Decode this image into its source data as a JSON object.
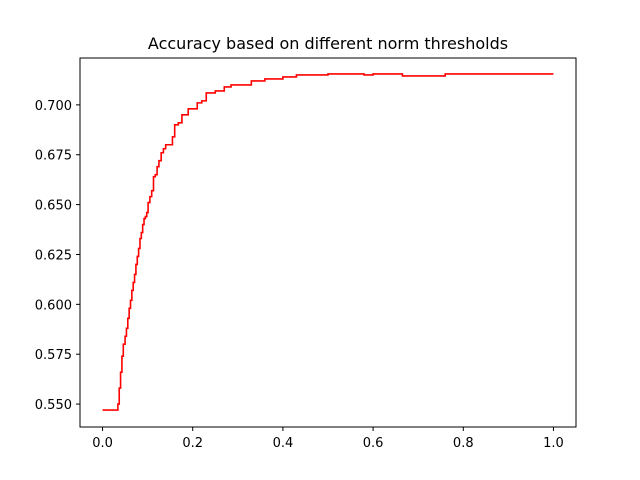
{
  "chart_data": {
    "type": "line",
    "title": "Accuracy based on different norm thresholds",
    "xlabel": "",
    "ylabel": "",
    "xlim": [
      -0.05,
      1.05
    ],
    "ylim": [
      0.5385,
      0.7235
    ],
    "xticks": [
      0.0,
      0.2,
      0.4,
      0.6,
      0.8,
      1.0
    ],
    "xtick_labels": [
      "0.0",
      "0.2",
      "0.4",
      "0.6",
      "0.8",
      "1.0"
    ],
    "yticks": [
      0.55,
      0.575,
      0.6,
      0.625,
      0.65,
      0.675,
      0.7
    ],
    "ytick_labels": [
      "0.550",
      "0.575",
      "0.600",
      "0.625",
      "0.650",
      "0.675",
      "0.700"
    ],
    "grid": false,
    "legend": "none",
    "series": [
      {
        "color": "#ff0000",
        "step": "post",
        "x": [
          0.0,
          0.03,
          0.034,
          0.037,
          0.04,
          0.043,
          0.046,
          0.05,
          0.053,
          0.056,
          0.059,
          0.062,
          0.065,
          0.068,
          0.071,
          0.074,
          0.077,
          0.08,
          0.083,
          0.086,
          0.089,
          0.092,
          0.095,
          0.098,
          0.101,
          0.105,
          0.109,
          0.113,
          0.117,
          0.121,
          0.125,
          0.13,
          0.135,
          0.14,
          0.145,
          0.15,
          0.155,
          0.16,
          0.168,
          0.176,
          0.184,
          0.19,
          0.2,
          0.21,
          0.22,
          0.23,
          0.25,
          0.27,
          0.285,
          0.3,
          0.33,
          0.36,
          0.38,
          0.4,
          0.43,
          0.46,
          0.5,
          0.58,
          0.6,
          0.63,
          0.665,
          0.7,
          0.75,
          0.76,
          0.8,
          0.85,
          1.0
        ],
        "y": [
          0.547,
          0.547,
          0.55,
          0.558,
          0.566,
          0.574,
          0.58,
          0.584,
          0.588,
          0.593,
          0.598,
          0.602,
          0.607,
          0.611,
          0.615,
          0.62,
          0.624,
          0.628,
          0.633,
          0.636,
          0.64,
          0.643,
          0.644,
          0.646,
          0.651,
          0.654,
          0.657,
          0.664,
          0.665,
          0.669,
          0.672,
          0.676,
          0.678,
          0.68,
          0.68,
          0.68,
          0.684,
          0.69,
          0.691,
          0.695,
          0.695,
          0.698,
          0.698,
          0.701,
          0.702,
          0.706,
          0.707,
          0.709,
          0.71,
          0.71,
          0.712,
          0.713,
          0.713,
          0.714,
          0.715,
          0.715,
          0.7155,
          0.715,
          0.7155,
          0.7155,
          0.7145,
          0.7145,
          0.7145,
          0.7155,
          0.7155,
          0.7155,
          0.7155
        ]
      }
    ]
  }
}
